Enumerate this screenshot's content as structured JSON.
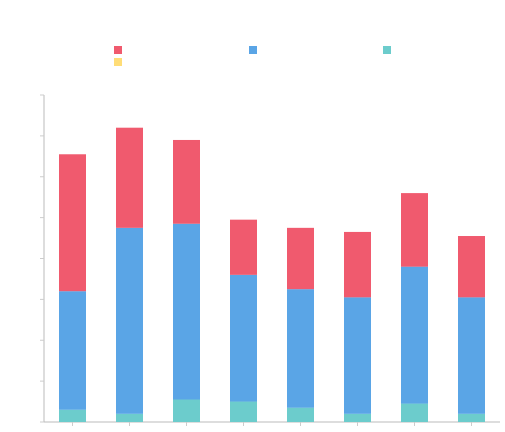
{
  "chart_data": {
    "type": "bar",
    "stacked": true,
    "title": "",
    "subtitle": "",
    "xlabel": "",
    "ylabel": "",
    "categories": [
      "",
      "",
      "",
      "",
      "",
      "",
      "",
      ""
    ],
    "ylim": [
      0,
      160
    ],
    "grid": false,
    "legend_position": "top",
    "series": [
      {
        "name": "",
        "color": "#ffdd77",
        "values": [
          0,
          0,
          0,
          0,
          0,
          0,
          0,
          0
        ]
      },
      {
        "name": "",
        "color": "#6ccccc",
        "values": [
          6,
          4,
          11,
          10,
          7,
          4,
          9,
          4
        ]
      },
      {
        "name": "",
        "color": "#5aa5e6",
        "values": [
          58,
          91,
          86,
          62,
          58,
          57,
          67,
          57
        ]
      },
      {
        "name": "",
        "color": "#f05a6e",
        "values": [
          67,
          49,
          41,
          27,
          30,
          32,
          36,
          30
        ]
      }
    ]
  }
}
